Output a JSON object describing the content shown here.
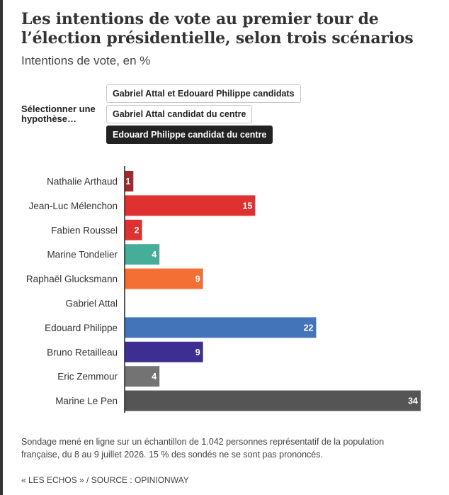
{
  "title": "Les intentions de vote au premier tour de l’élection présidentielle, selon trois scénarios",
  "subtitle": "Intentions de vote, en %",
  "selector": {
    "label": "Sélectionner une hypothèse…",
    "options": [
      {
        "label": "Gabriel Attal et Edouard Philippe candidats",
        "active": false
      },
      {
        "label": "Gabriel Attal candidat du centre",
        "active": false
      },
      {
        "label": "Edouard Philippe candidat du centre",
        "active": true
      }
    ]
  },
  "chart_data": {
    "type": "bar",
    "orientation": "horizontal",
    "categories": [
      "Nathalie Arthaud",
      "Jean-Luc Mélenchon",
      "Fabien Roussel",
      "Marine Tondelier",
      "Raphaël Glucksmann",
      "Gabriel Attal",
      "Edouard Philippe",
      "Bruno Retailleau",
      "Eric Zemmour",
      "Marine Le Pen"
    ],
    "values": [
      1,
      15,
      2,
      4,
      9,
      null,
      22,
      9,
      4,
      34
    ],
    "data_labels": [
      "1",
      "15",
      "2",
      "4",
      "9",
      "",
      "22",
      "9",
      "4",
      "34"
    ],
    "colors": [
      "#a3282f",
      "#e03131",
      "#e03131",
      "#45ad9a",
      "#f46f34",
      "#888888",
      "#4374b9",
      "#3d2e91",
      "#737373",
      "#555555"
    ],
    "xlim": [
      0,
      34
    ],
    "grid": false,
    "legend": "none"
  },
  "footnote": "Sondage mené en ligne sur un échantillon de 1.042 personnes représentatif de la population française, du 8 au 9 juillet 2026. 15 % des sondés ne se sont pas prononcés.",
  "source": "« LES ECHOS » / SOURCE : OPINIONWAY"
}
